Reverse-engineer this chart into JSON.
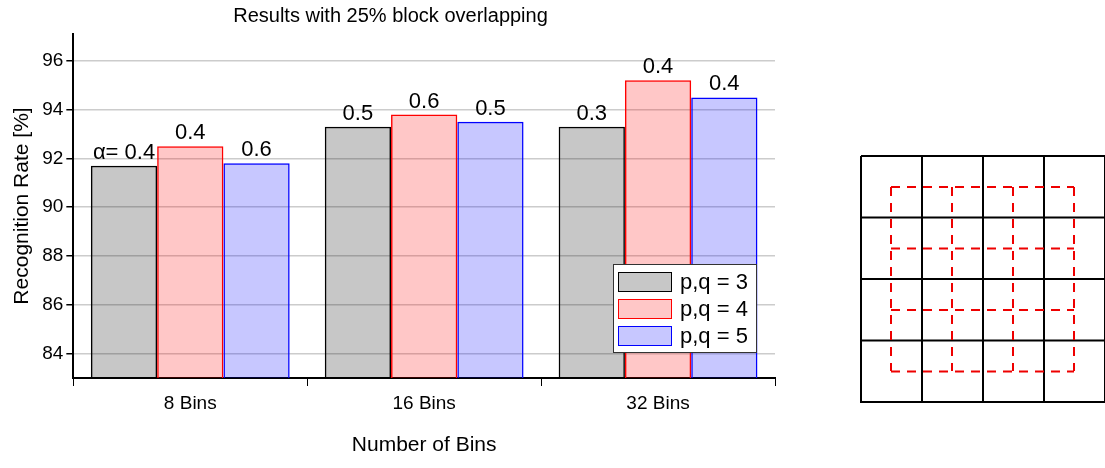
{
  "chart_data": {
    "type": "bar",
    "title": "Results with 25% block overlapping",
    "xlabel": "Number of Bins",
    "ylabel": "Recognition Rate [%]",
    "categories": [
      "8 Bins",
      "16 Bins",
      "32 Bins"
    ],
    "series": [
      {
        "name": "p,q = 3",
        "color": "#000000",
        "values": [
          91.7,
          93.3,
          93.3
        ]
      },
      {
        "name": "p,q = 4",
        "color": "#ff0000",
        "values": [
          92.5,
          93.8,
          95.2
        ]
      },
      {
        "name": "p,q = 5",
        "color": "#0000ff",
        "values": [
          91.8,
          93.5,
          94.5
        ]
      }
    ],
    "ylim": [
      83,
      97.1
    ],
    "yticks": [
      84,
      86,
      88,
      90,
      92,
      94,
      96
    ],
    "grid": "y",
    "legend": "bottom right",
    "annotations": [
      "α= 0.4",
      "0.4",
      "0.6",
      "0.5",
      "0.6",
      "0.5",
      "0.3",
      "0.4",
      "0.4"
    ]
  }
}
